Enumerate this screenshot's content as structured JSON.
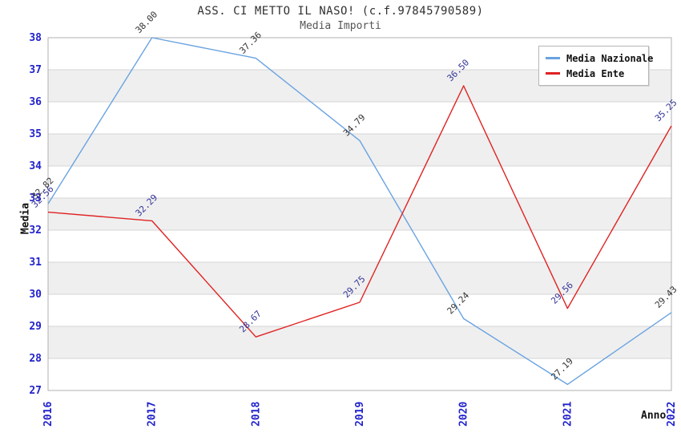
{
  "header": {
    "title": "ASS. CI METTO IL NASO! (c.f.97845790589)",
    "subtitle": "Media Importi"
  },
  "legend": {
    "items": [
      {
        "label": "Media Nazionale",
        "color": "#69A3E1"
      },
      {
        "label": "Media Ente",
        "color": "#E02222"
      }
    ]
  },
  "chart_data": {
    "type": "line",
    "title": "ASS. CI METTO IL NASO! (c.f.97845790589)",
    "subtitle": "Media Importi",
    "xlabel": "Anno",
    "ylabel": "Media",
    "x": [
      2016,
      2017,
      2018,
      2019,
      2020,
      2021,
      2022
    ],
    "series": [
      {
        "name": "Media Nazionale",
        "color": "#69A3E1",
        "label_color": "#333333",
        "values": [
          32.82,
          38.0,
          37.36,
          34.79,
          29.24,
          27.19,
          29.43
        ]
      },
      {
        "name": "Media Ente",
        "color": "#E02222",
        "label_color": "#333399",
        "values": [
          32.56,
          32.29,
          28.67,
          29.75,
          36.5,
          29.56,
          35.25
        ]
      }
    ],
    "ylim": [
      27,
      38
    ],
    "y_ticks": [
      27,
      28,
      29,
      30,
      31,
      32,
      33,
      34,
      35,
      36,
      37,
      38
    ],
    "grid": true,
    "legend_position": "top-right",
    "tick_color": "#2222CC",
    "grid_color": "#d6d6d6",
    "border_color": "#b0b0b0",
    "band_colors": [
      "#ffffff",
      "#efefef"
    ]
  }
}
